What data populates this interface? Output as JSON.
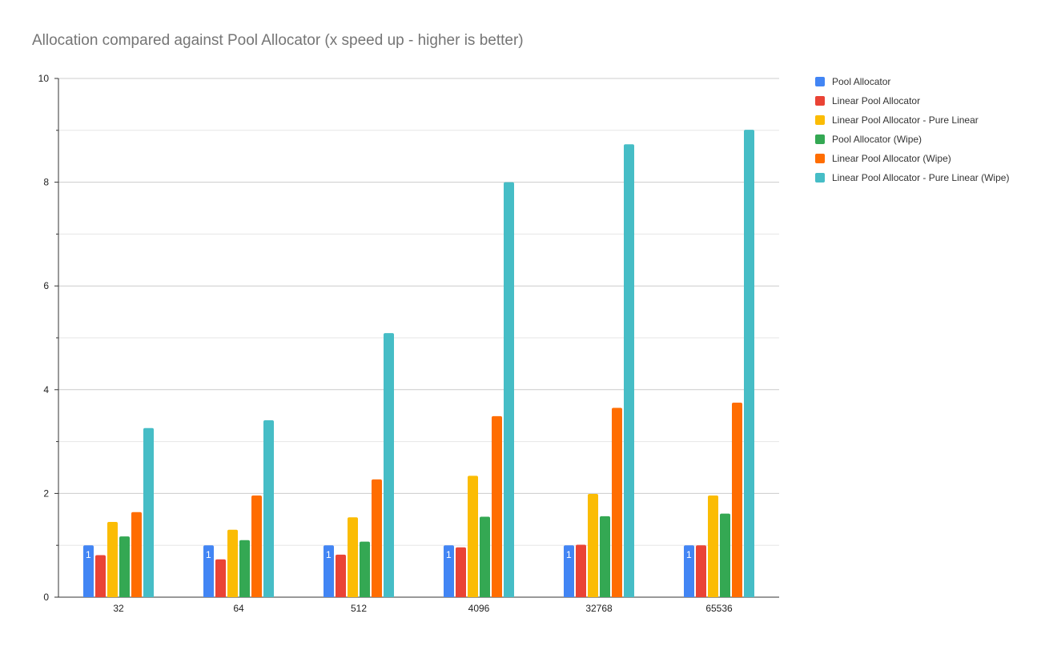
{
  "chart_data": {
    "type": "bar",
    "title": "Allocation compared against Pool Allocator (x speed up - higher is better)",
    "xlabel": "",
    "ylabel": "",
    "categories": [
      "32",
      "64",
      "512",
      "4096",
      "32768",
      "65536"
    ],
    "ylim": [
      0,
      10
    ],
    "y_ticks": [
      "0",
      "2",
      "4",
      "6",
      "8",
      "10"
    ],
    "grid": true,
    "legend_position": "right",
    "series": [
      {
        "name": "Pool Allocator",
        "color": "#4285f4",
        "values": [
          1,
          1,
          1,
          1,
          1,
          1
        ],
        "data_labels": [
          "1",
          "1",
          "1",
          "1",
          "1",
          "1"
        ]
      },
      {
        "name": "Linear Pool Allocator",
        "color": "#ea4335",
        "values": [
          0.81,
          0.73,
          0.82,
          0.96,
          1.01,
          1.0
        ]
      },
      {
        "name": "Linear Pool Allocator - Pure Linear",
        "color": "#fbbc04",
        "values": [
          1.45,
          1.3,
          1.54,
          2.34,
          1.99,
          1.96
        ]
      },
      {
        "name": "Pool Allocator (Wipe)",
        "color": "#34a853",
        "values": [
          1.17,
          1.1,
          1.07,
          1.55,
          1.56,
          1.61
        ]
      },
      {
        "name": "Linear Pool Allocator (Wipe)",
        "color": "#ff6d01",
        "values": [
          1.64,
          1.96,
          2.27,
          3.49,
          3.65,
          3.75
        ]
      },
      {
        "name": "Linear Pool Allocator - Pure Linear (Wipe)",
        "color": "#46bdc6",
        "values": [
          3.26,
          3.41,
          5.09,
          8.0,
          8.73,
          9.01
        ]
      }
    ]
  }
}
